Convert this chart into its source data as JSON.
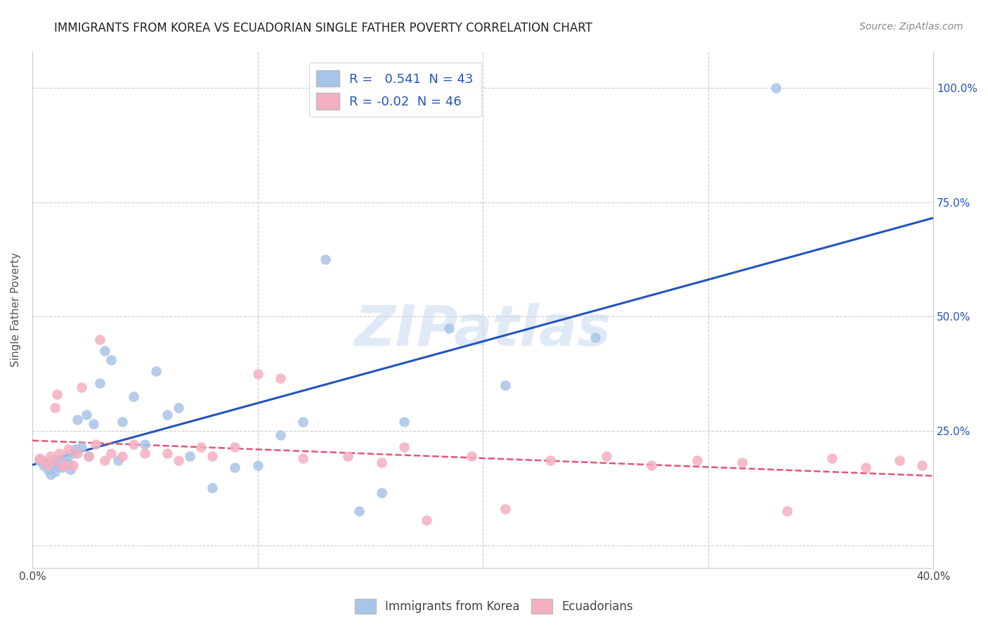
{
  "title": "IMMIGRANTS FROM KOREA VS ECUADORIAN SINGLE FATHER POVERTY CORRELATION CHART",
  "source": "Source: ZipAtlas.com",
  "ylabel": "Single Father Poverty",
  "xlim": [
    0.0,
    0.4
  ],
  "ylim": [
    -0.05,
    1.08
  ],
  "R_korea": 0.541,
  "N_korea": 43,
  "R_ecuador": -0.02,
  "N_ecuador": 46,
  "color_korea": "#a8c4e8",
  "color_ecuador": "#f4afc0",
  "line_color_korea": "#2255bb",
  "line_color_ecuador": "#e05575",
  "watermark_text": "ZIPatlas",
  "korea_x": [
    0.003,
    0.005,
    0.007,
    0.008,
    0.009,
    0.01,
    0.011,
    0.012,
    0.013,
    0.015,
    0.016,
    0.017,
    0.018,
    0.019,
    0.02,
    0.022,
    0.024,
    0.025,
    0.027,
    0.03,
    0.032,
    0.035,
    0.038,
    0.04,
    0.045,
    0.05,
    0.055,
    0.06,
    0.065,
    0.07,
    0.08,
    0.09,
    0.1,
    0.11,
    0.12,
    0.13,
    0.145,
    0.155,
    0.165,
    0.185,
    0.21,
    0.25,
    0.33
  ],
  "korea_y": [
    0.185,
    0.175,
    0.165,
    0.155,
    0.18,
    0.16,
    0.175,
    0.185,
    0.17,
    0.195,
    0.18,
    0.165,
    0.2,
    0.21,
    0.275,
    0.215,
    0.285,
    0.195,
    0.265,
    0.355,
    0.425,
    0.405,
    0.185,
    0.27,
    0.325,
    0.22,
    0.38,
    0.285,
    0.3,
    0.195,
    0.125,
    0.17,
    0.175,
    0.24,
    0.27,
    0.625,
    0.075,
    0.115,
    0.27,
    0.475,
    0.35,
    0.455,
    1.0
  ],
  "ecuador_x": [
    0.003,
    0.005,
    0.007,
    0.008,
    0.009,
    0.01,
    0.011,
    0.012,
    0.013,
    0.015,
    0.016,
    0.018,
    0.02,
    0.022,
    0.025,
    0.028,
    0.03,
    0.032,
    0.035,
    0.04,
    0.045,
    0.05,
    0.06,
    0.065,
    0.075,
    0.08,
    0.09,
    0.1,
    0.11,
    0.12,
    0.14,
    0.155,
    0.165,
    0.175,
    0.195,
    0.21,
    0.23,
    0.255,
    0.275,
    0.295,
    0.315,
    0.335,
    0.355,
    0.37,
    0.385,
    0.395
  ],
  "ecuador_y": [
    0.19,
    0.185,
    0.175,
    0.195,
    0.185,
    0.3,
    0.33,
    0.2,
    0.175,
    0.175,
    0.21,
    0.175,
    0.2,
    0.345,
    0.195,
    0.22,
    0.45,
    0.185,
    0.2,
    0.195,
    0.22,
    0.2,
    0.2,
    0.185,
    0.215,
    0.195,
    0.215,
    0.375,
    0.365,
    0.19,
    0.195,
    0.18,
    0.215,
    0.055,
    0.195,
    0.08,
    0.185,
    0.195,
    0.175,
    0.185,
    0.18,
    0.075,
    0.19,
    0.17,
    0.185,
    0.175
  ]
}
